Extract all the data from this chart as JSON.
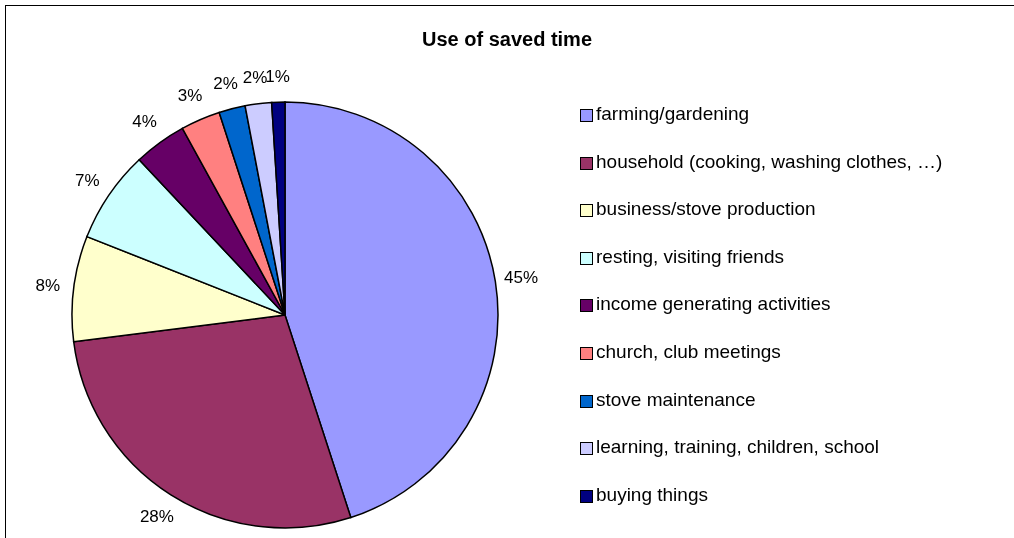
{
  "chart_data": {
    "type": "pie",
    "title": "Use of saved time",
    "categories": [
      "farming/gardening",
      "household (cooking, washing clothes, …)",
      "business/stove production",
      "resting, visiting friends",
      "income generating activities",
      "church, club meetings",
      "stove maintenance",
      "learning, training, children, school",
      "buying things"
    ],
    "values": [
      45,
      28,
      8,
      7,
      4,
      3,
      2,
      2,
      1
    ],
    "value_labels": [
      "45%",
      "28%",
      "8%",
      "7%",
      "4%",
      "3%",
      "2%",
      "2%",
      "1%"
    ],
    "colors": [
      "#9999ff",
      "#993366",
      "#ffffcc",
      "#ccffff",
      "#660066",
      "#ff8080",
      "#0066cc",
      "#ccccff",
      "#000080"
    ],
    "legend": "right"
  }
}
